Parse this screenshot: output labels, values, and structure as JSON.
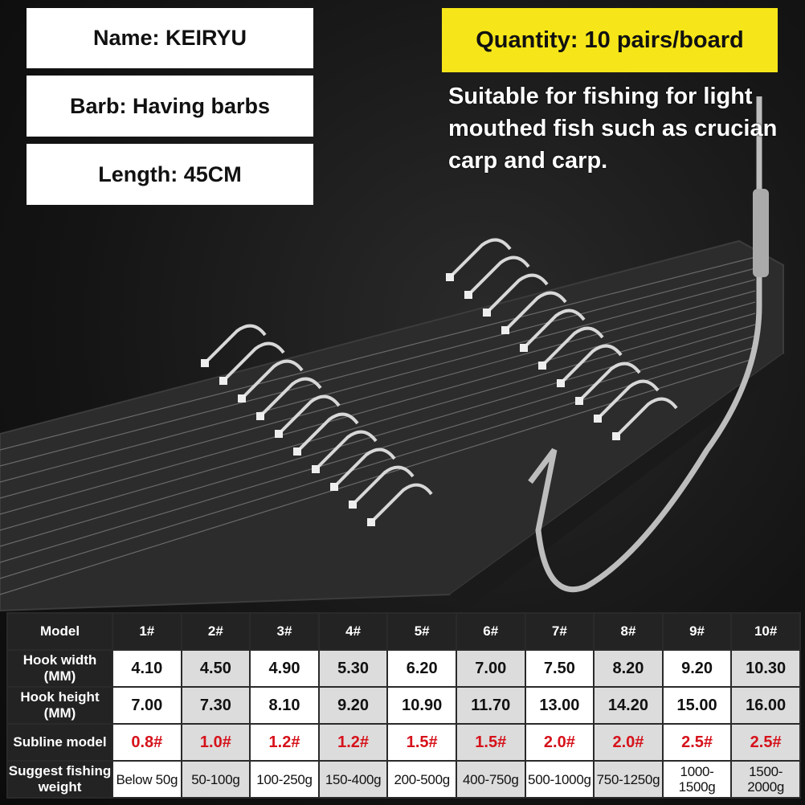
{
  "labels": {
    "name": "Name: KEIRYU",
    "barb": "Barb: Having barbs",
    "length": "Length: 45CM",
    "quantity": "Quantity: 10 pairs/board",
    "description": "Suitable for fishing for light mouthed fish such as crucian carp and carp."
  },
  "colors": {
    "quantity_bg": "#f6e619",
    "subline_text": "#d6121b",
    "header_bg": "#232323"
  },
  "table": {
    "row_headers": [
      "Model",
      "Hook width (MM)",
      "Hook height (MM)",
      "Subline model",
      "Suggest fishing weight"
    ],
    "models": [
      "1#",
      "2#",
      "3#",
      "4#",
      "5#",
      "6#",
      "7#",
      "8#",
      "9#",
      "10#"
    ],
    "hook_width": [
      "4.10",
      "4.50",
      "4.90",
      "5.30",
      "6.20",
      "7.00",
      "7.50",
      "8.20",
      "9.20",
      "10.30"
    ],
    "hook_height": [
      "7.00",
      "7.30",
      "8.10",
      "9.20",
      "10.90",
      "11.70",
      "13.00",
      "14.20",
      "15.00",
      "16.00"
    ],
    "subline": [
      "0.8#",
      "1.0#",
      "1.2#",
      "1.2#",
      "1.5#",
      "1.5#",
      "2.0#",
      "2.0#",
      "2.5#",
      "2.5#"
    ],
    "weight": [
      "Below 50g",
      "50-100g",
      "100-250g",
      "150-400g",
      "200-500g",
      "400-750g",
      "500-1000g",
      "750-1250g",
      "1000-1500g",
      "1500-2000g"
    ]
  }
}
